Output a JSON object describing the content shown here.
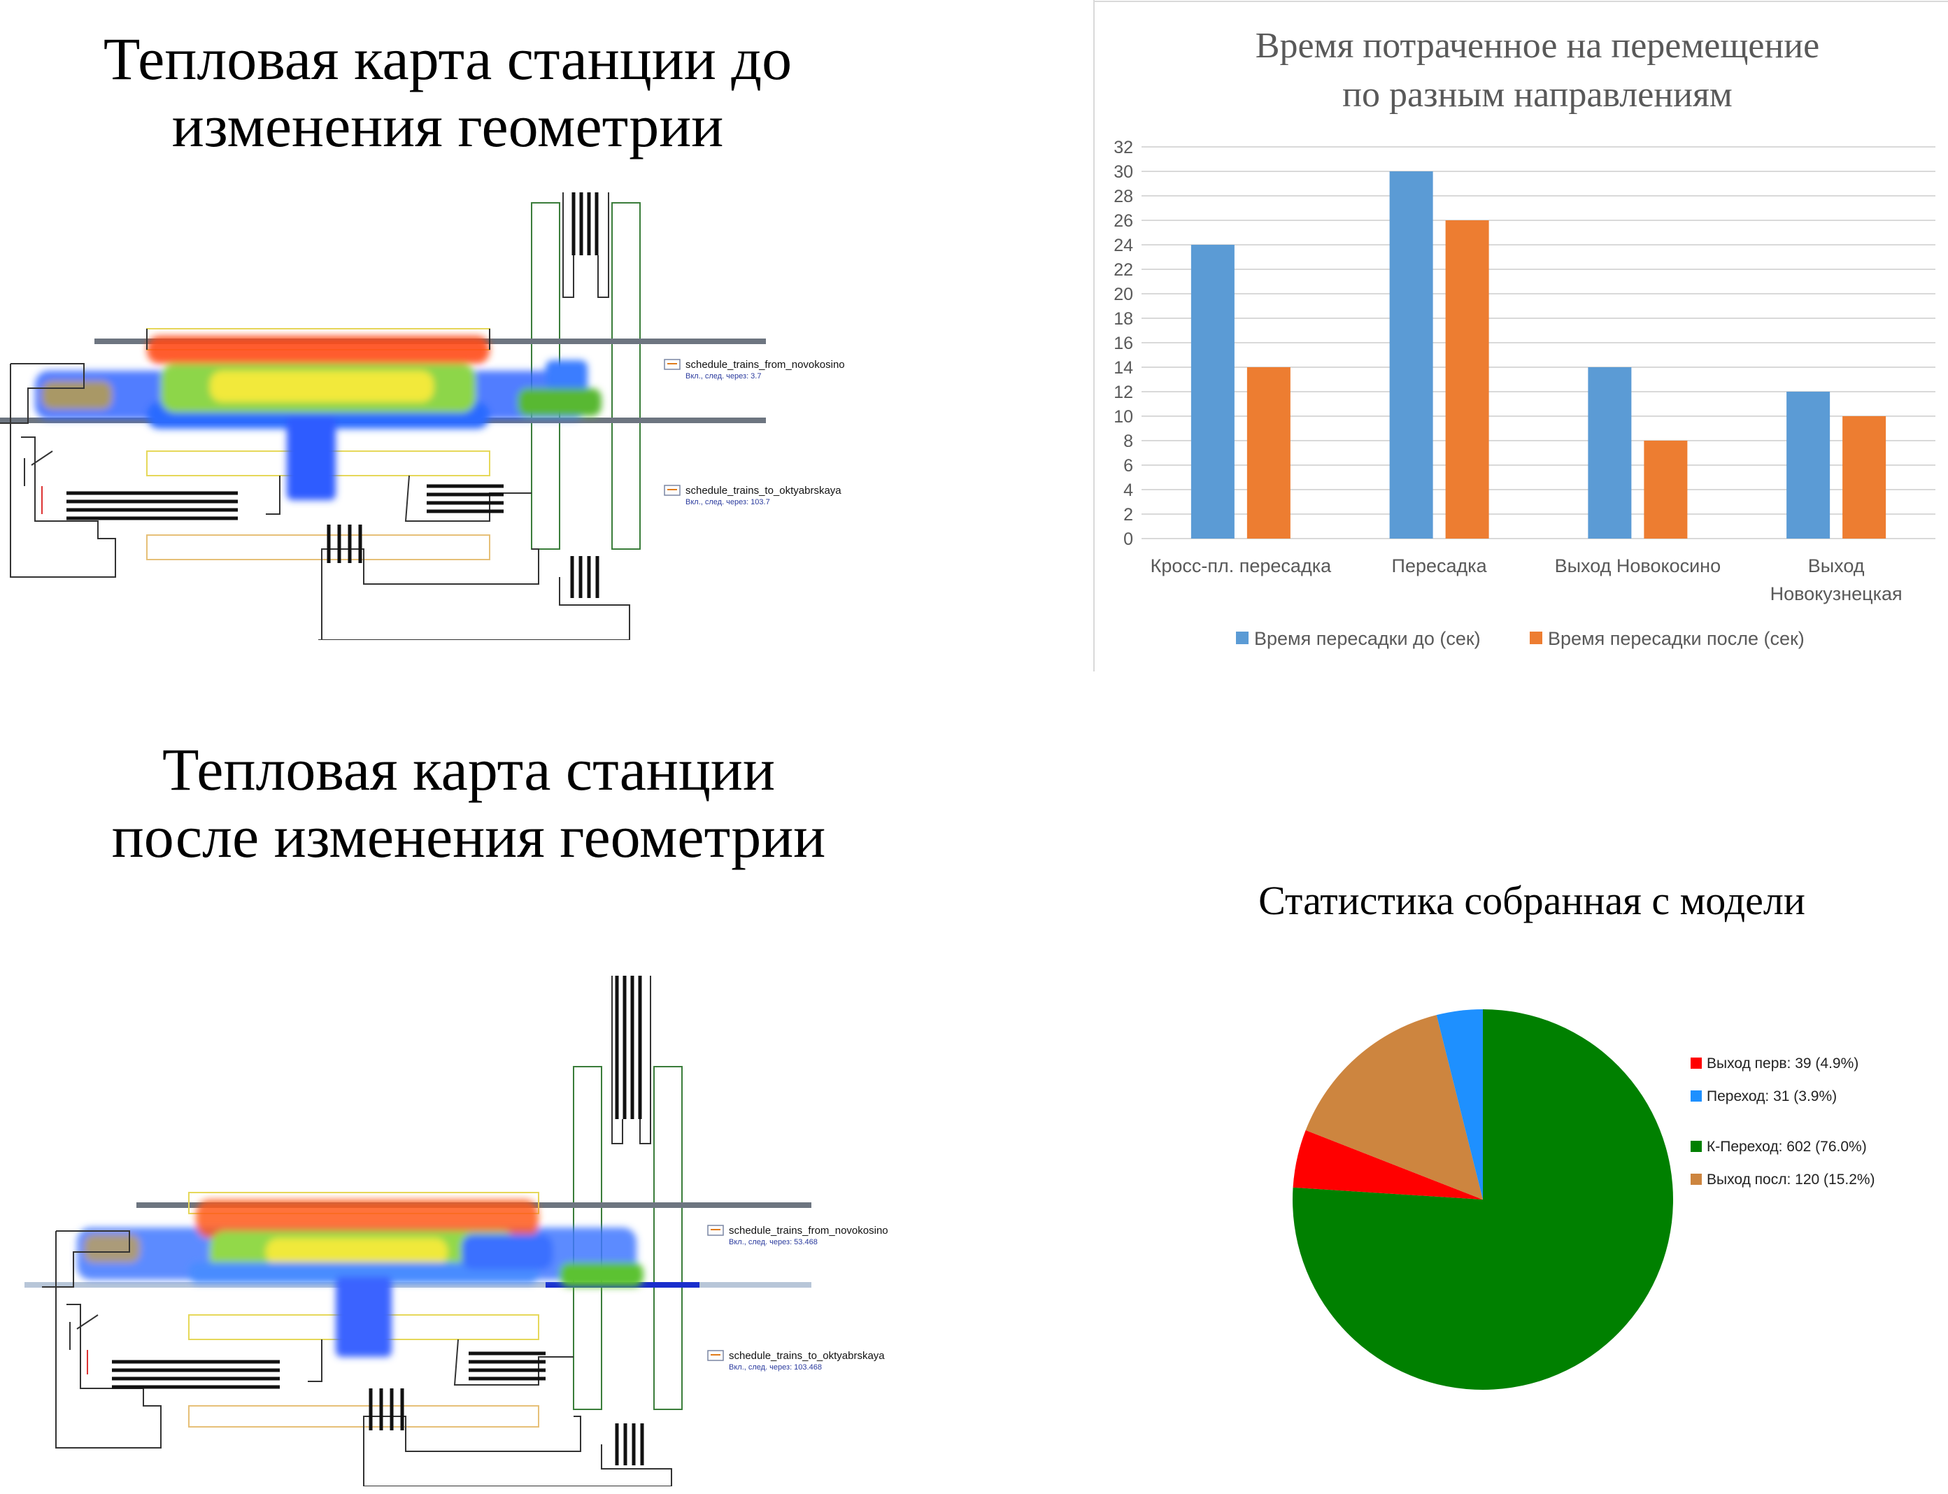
{
  "headings": {
    "before": [
      "Тепловая карта станции до",
      "изменения геометрии"
    ],
    "after": [
      "Тепловая карта станции",
      "после изменения геометрии"
    ]
  },
  "maps": {
    "before": {
      "sched1": {
        "name": "schedule_trains_from_novokosino",
        "info": "Вкл., след. через: 3.7"
      },
      "sched2": {
        "name": "schedule_trains_to_oktyabrskaya",
        "info": "Вкл., след. через: 103.7"
      }
    },
    "after": {
      "sched1": {
        "name": "schedule_trains_from_novokosino",
        "info": "Вкл., след. через: 53.468"
      },
      "sched2": {
        "name": "schedule_trains_to_oktyabrskaya",
        "info": "Вкл., след. через: 103.468"
      }
    }
  },
  "chart_data": [
    {
      "type": "bar",
      "title": [
        "Время потраченное на перемещение",
        "по разным направлениям"
      ],
      "categories": [
        [
          "Кросс-пл. пересадка"
        ],
        [
          "Пересадка"
        ],
        [
          "Выход Новокосино"
        ],
        [
          "Выход",
          "Новокузнецкая"
        ]
      ],
      "series": [
        {
          "name": "Время пересадки до (сек)",
          "color": "#5b9bd5",
          "values": [
            24,
            30,
            14,
            12
          ]
        },
        {
          "name": "Время пересадки после (сек)",
          "color": "#ed7d31",
          "values": [
            14,
            26,
            8,
            10
          ]
        }
      ],
      "ylim": [
        0,
        32
      ],
      "yticks": [
        0,
        2,
        4,
        6,
        8,
        10,
        12,
        14,
        16,
        18,
        20,
        22,
        24,
        26,
        28,
        30,
        32
      ],
      "grid": true,
      "legend": "bottom"
    },
    {
      "type": "pie",
      "title": "Статистика собранная с модели",
      "slices": [
        {
          "label": "Выход перв: 39 (4.9%)",
          "value": 39,
          "color": "#ff0000"
        },
        {
          "label": "Переход: 31 (3.9%)",
          "value": 31,
          "color": "#1e90ff"
        },
        {
          "label": "К-Переход: 602 (76.0%)",
          "value": 602,
          "color": "#008000"
        },
        {
          "label": "Выход посл: 120 (15.2%)",
          "value": 120,
          "color": "#cd853f"
        }
      ],
      "legend": "right"
    }
  ]
}
